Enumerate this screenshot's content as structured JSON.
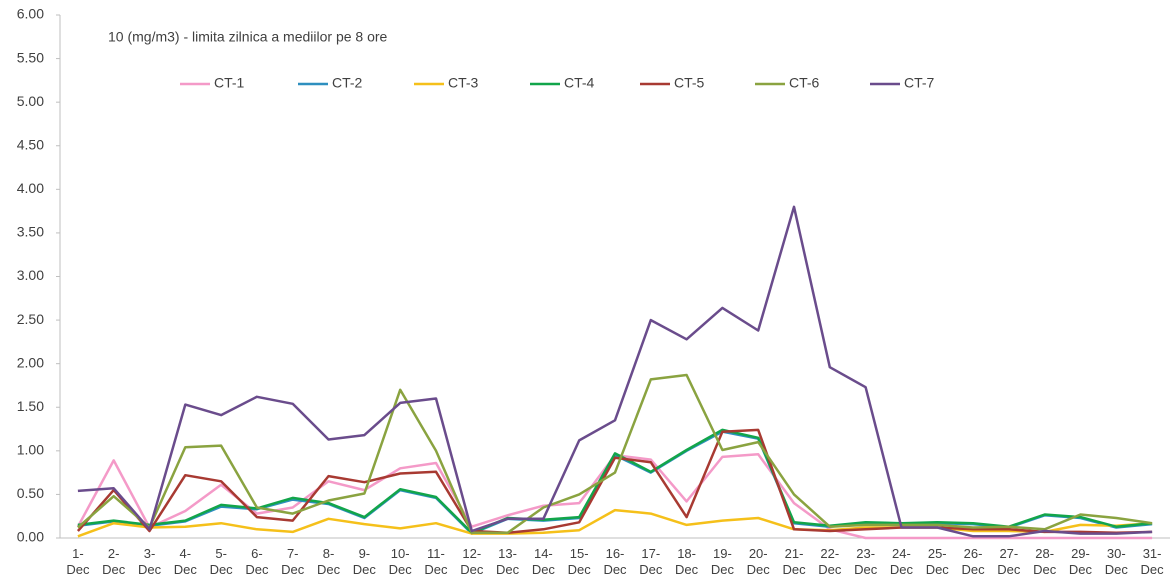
{
  "chart_data": {
    "type": "line",
    "annotation": "10 (mg/m3) - limita zilnica  a mediilor pe 8 ore",
    "categories": [
      "1- Dec",
      "2- Dec",
      "3- Dec",
      "4- Dec",
      "5- Dec",
      "6- Dec",
      "7- Dec",
      "8- Dec",
      "9- Dec",
      "10- Dec",
      "11- Dec",
      "12- Dec",
      "13- Dec",
      "14- Dec",
      "15- Dec",
      "16- Dec",
      "17- Dec",
      "18- Dec",
      "19- Dec",
      "20- Dec",
      "21- Dec",
      "22- Dec",
      "23- Dec",
      "24- Dec",
      "25- Dec",
      "26- Dec",
      "27- Dec",
      "28- Dec",
      "29- Dec",
      "30- Dec",
      "31- Dec"
    ],
    "series": [
      {
        "name": "CT-1",
        "color": "#f49ac8",
        "values": [
          0.13,
          0.89,
          0.12,
          0.31,
          0.61,
          0.28,
          0.35,
          0.65,
          0.55,
          0.8,
          0.86,
          0.13,
          0.26,
          0.37,
          0.4,
          0.95,
          0.9,
          0.42,
          0.93,
          0.96,
          0.4,
          0.1,
          0,
          0,
          0,
          0,
          0,
          0,
          0,
          0,
          0
        ]
      },
      {
        "name": "CT-2",
        "color": "#2e8fbf",
        "values": [
          0.14,
          0.19,
          0.14,
          0.19,
          0.36,
          0.33,
          0.44,
          0.39,
          0.23,
          0.55,
          0.46,
          0.05,
          0.22,
          0.2,
          0.23,
          0.95,
          0.75,
          1.0,
          1.22,
          1.14,
          0.17,
          0.13,
          0.17,
          0.16,
          0.17,
          0.16,
          0.12,
          0.26,
          0.23,
          0.12,
          0.16
        ]
      },
      {
        "name": "CT-3",
        "color": "#f5c01a",
        "values": [
          0.02,
          0.17,
          0.12,
          0.13,
          0.17,
          0.1,
          0.07,
          0.22,
          0.16,
          0.11,
          0.17,
          0.05,
          0.05,
          0.06,
          0.09,
          0.32,
          0.28,
          0.15,
          0.2,
          0.23,
          0.1,
          0.09,
          0.12,
          0.12,
          0.12,
          0.08,
          0.08,
          0.07,
          0.15,
          0.14,
          0.17
        ]
      },
      {
        "name": "CT-4",
        "color": "#12a54a",
        "values": [
          0.15,
          0.2,
          0.15,
          0.2,
          0.38,
          0.34,
          0.46,
          0.4,
          0.24,
          0.56,
          0.47,
          0.06,
          0.23,
          0.21,
          0.24,
          0.97,
          0.76,
          1.01,
          1.24,
          1.15,
          0.18,
          0.14,
          0.18,
          0.17,
          0.18,
          0.17,
          0.13,
          0.27,
          0.24,
          0.13,
          0.17
        ]
      },
      {
        "name": "CT-5",
        "color": "#a83a32",
        "values": [
          0.08,
          0.55,
          0.08,
          0.72,
          0.65,
          0.24,
          0.2,
          0.71,
          0.64,
          0.74,
          0.76,
          0.08,
          0.06,
          0.1,
          0.18,
          0.92,
          0.87,
          0.24,
          1.22,
          1.24,
          0.1,
          0.08,
          0.1,
          0.12,
          0.12,
          0.1,
          0.1,
          0.07,
          0.07,
          0.06,
          0.07
        ]
      },
      {
        "name": "CT-6",
        "color": "#8aa340",
        "values": [
          0.12,
          0.48,
          0.12,
          1.04,
          1.06,
          0.35,
          0.28,
          0.43,
          0.51,
          1.7,
          1.0,
          0.06,
          0.06,
          0.35,
          0.5,
          0.75,
          1.82,
          1.87,
          1.01,
          1.1,
          0.5,
          0.13,
          0.15,
          0.15,
          0.15,
          0.12,
          0.13,
          0.1,
          0.27,
          0.23,
          0.17
        ]
      },
      {
        "name": "CT-7",
        "color": "#6a4c8c",
        "values": [
          0.54,
          0.57,
          0.1,
          1.53,
          1.41,
          1.62,
          1.54,
          1.13,
          1.18,
          1.55,
          1.6,
          0.08,
          0.22,
          0.22,
          1.12,
          1.35,
          2.5,
          2.28,
          2.64,
          2.38,
          3.8,
          1.96,
          1.73,
          0.12,
          0.12,
          0.02,
          0.02,
          0.08,
          0.05,
          0.05,
          0.07
        ]
      }
    ],
    "ylim": [
      0,
      6
    ],
    "yticks": [
      {
        "value": 0,
        "label": "0.00"
      },
      {
        "value": 0.5,
        "label": "0.50"
      },
      {
        "value": 1,
        "label": "1.00"
      },
      {
        "value": 1.5,
        "label": "1.50"
      },
      {
        "value": 2,
        "label": "2.00"
      },
      {
        "value": 2.5,
        "label": "2.50"
      },
      {
        "value": 3,
        "label": "3.00"
      },
      {
        "value": 3.5,
        "label": "3.50"
      },
      {
        "value": 4,
        "label": "4.00"
      },
      {
        "value": 4.5,
        "label": "4.50"
      },
      {
        "value": 5,
        "label": "5.00"
      },
      {
        "value": 5.5,
        "label": "5.50"
      },
      {
        "value": 6,
        "label": "6.00"
      }
    ],
    "grid": false,
    "legend": "top"
  }
}
